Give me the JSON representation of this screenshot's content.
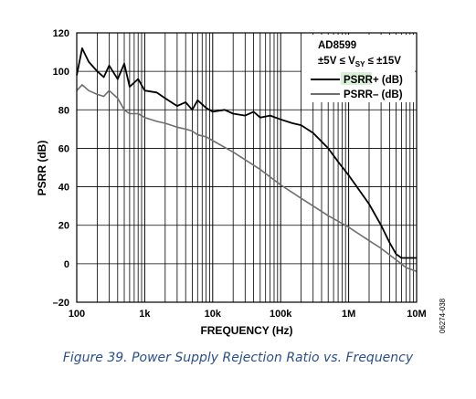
{
  "chart_data": {
    "type": "line",
    "title": "",
    "xlabel": "FREQUENCY (Hz)",
    "ylabel": "PSRR (dB)",
    "x_scale": "log",
    "xlim": [
      100,
      10000000
    ],
    "ylim": [
      -20,
      120
    ],
    "x_ticks": [
      {
        "value": 100,
        "label": "100"
      },
      {
        "value": 1000,
        "label": "1k"
      },
      {
        "value": 10000,
        "label": "10k"
      },
      {
        "value": 100000,
        "label": "100k"
      },
      {
        "value": 1000000,
        "label": "1M"
      },
      {
        "value": 10000000,
        "label": "10M"
      }
    ],
    "y_ticks": [
      {
        "value": 120,
        "label": "120"
      },
      {
        "value": 100,
        "label": "100"
      },
      {
        "value": 80,
        "label": "80"
      },
      {
        "value": 60,
        "label": "60"
      },
      {
        "value": 40,
        "label": "40"
      },
      {
        "value": 20,
        "label": "20"
      },
      {
        "value": 0,
        "label": "0"
      },
      {
        "value": -20,
        "label": "–20"
      }
    ],
    "grid": true,
    "legend_position": "top-right",
    "annotations": {
      "part": "AD8599",
      "condition_prefix": "±5V ≤ V",
      "condition_sub": "SY",
      "condition_suffix": " ≤ ±15V"
    },
    "series": [
      {
        "name": "PSRR+ (dB)",
        "color": "#000000",
        "x": [
          100,
          120,
          150,
          200,
          250,
          300,
          400,
          500,
          600,
          800,
          1000,
          1500,
          2000,
          3000,
          4000,
          5000,
          6000,
          8000,
          10000,
          15000,
          20000,
          30000,
          40000,
          50000,
          70000,
          100000,
          150000,
          200000,
          300000,
          500000,
          700000,
          1000000,
          2000000,
          3000000,
          4000000,
          5000000,
          6000000,
          7000000,
          10000000
        ],
        "y": [
          98,
          112,
          105,
          100,
          97,
          103,
          96,
          104,
          92,
          96,
          90,
          89,
          86,
          82,
          84,
          80,
          85,
          81,
          79,
          80,
          78,
          77,
          79,
          76,
          77,
          75,
          73,
          72,
          68,
          60,
          53,
          46,
          31,
          20,
          11,
          5,
          3,
          3,
          3
        ]
      },
      {
        "name": "PSRR– (dB)",
        "color": "#6e6e6e",
        "x": [
          100,
          120,
          150,
          200,
          250,
          300,
          400,
          500,
          600,
          800,
          1000,
          1500,
          2000,
          3000,
          4000,
          5000,
          6000,
          8000,
          10000,
          20000,
          50000,
          100000,
          200000,
          500000,
          1000000,
          2000000,
          3000000,
          5000000,
          7000000,
          10000000
        ],
        "y": [
          90,
          93,
          90,
          88,
          87,
          90,
          86,
          80,
          78,
          78,
          76,
          74,
          73,
          71,
          70,
          69,
          67,
          66,
          64,
          58,
          49,
          41,
          34,
          25,
          19,
          12,
          8,
          2,
          -2,
          -4
        ]
      }
    ]
  },
  "figure": {
    "caption": "Figure 39. Power Supply Rejection Ratio vs. Frequency",
    "side_code": "06274-038"
  }
}
